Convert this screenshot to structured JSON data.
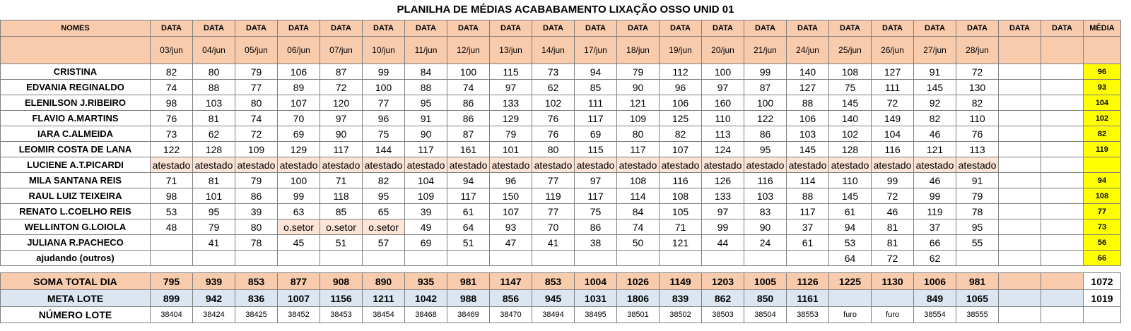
{
  "title": "PLANILHA DE MÉDIAS ACABABAMENTO LIXAÇÃO OSSO UNID 01",
  "header": {
    "names_label": "NOMES",
    "data_label": "DATA",
    "media_label": "MÉDIA",
    "dates": [
      "03/jun",
      "04/jun",
      "05/jun",
      "06/jun",
      "07/jun",
      "10/jun",
      "11/jun",
      "12/jun",
      "13/jun",
      "14/jun",
      "17/jun",
      "18/jun",
      "19/jun",
      "20/jun",
      "21/jun",
      "24/jun",
      "25/jun",
      "26/jun",
      "27/jun",
      "28/jun",
      "",
      ""
    ]
  },
  "rows": [
    {
      "name": "CRISTINA",
      "values": [
        "82",
        "80",
        "79",
        "106",
        "87",
        "99",
        "84",
        "100",
        "115",
        "73",
        "94",
        "79",
        "112",
        "100",
        "99",
        "140",
        "108",
        "127",
        "91",
        "72",
        "",
        ""
      ],
      "avg": "96"
    },
    {
      "name": "EDVANIA REGINALDO",
      "values": [
        "74",
        "88",
        "77",
        "89",
        "72",
        "100",
        "88",
        "74",
        "97",
        "62",
        "85",
        "90",
        "96",
        "97",
        "87",
        "127",
        "75",
        "111",
        "145",
        "130",
        "",
        ""
      ],
      "avg": "93"
    },
    {
      "name": "ELENILSON J.RIBEIRO",
      "values": [
        "98",
        "103",
        "80",
        "107",
        "120",
        "77",
        "95",
        "86",
        "133",
        "102",
        "111",
        "121",
        "106",
        "160",
        "100",
        "88",
        "145",
        "72",
        "92",
        "82",
        "",
        ""
      ],
      "avg": "104"
    },
    {
      "name": "FLAVIO A.MARTINS",
      "values": [
        "76",
        "81",
        "74",
        "70",
        "97",
        "96",
        "91",
        "86",
        "129",
        "76",
        "117",
        "109",
        "125",
        "110",
        "122",
        "106",
        "140",
        "149",
        "82",
        "110",
        "",
        ""
      ],
      "avg": "102"
    },
    {
      "name": "IARA C.ALMEIDA",
      "values": [
        "73",
        "62",
        "72",
        "69",
        "90",
        "75",
        "90",
        "87",
        "79",
        "76",
        "69",
        "80",
        "82",
        "113",
        "86",
        "103",
        "102",
        "104",
        "46",
        "76",
        "",
        ""
      ],
      "avg": "82"
    },
    {
      "name": "LEOMIR COSTA DE LANA",
      "values": [
        "122",
        "128",
        "109",
        "129",
        "117",
        "144",
        "117",
        "161",
        "101",
        "80",
        "115",
        "117",
        "107",
        "124",
        "95",
        "145",
        "128",
        "116",
        "121",
        "113",
        "",
        ""
      ],
      "avg": "119"
    },
    {
      "name": "LUCIENE A.T.PICARDI",
      "values": [
        "atestado",
        "atestado",
        "atestado",
        "atestado",
        "atestado",
        "atestado",
        "atestado",
        "atestado",
        "atestado",
        "atestado",
        "atestado",
        "atestado",
        "atestado",
        "atestado",
        "atestado",
        "atestado",
        "atestado",
        "atestado",
        "atestado",
        "atestado",
        "",
        ""
      ],
      "avg": ""
    },
    {
      "name": "MILA SANTANA REIS",
      "values": [
        "71",
        "81",
        "79",
        "100",
        "71",
        "82",
        "104",
        "94",
        "96",
        "77",
        "97",
        "108",
        "116",
        "126",
        "116",
        "114",
        "110",
        "99",
        "46",
        "91",
        "",
        ""
      ],
      "avg": "94"
    },
    {
      "name": "RAUL LUIZ TEIXEIRA",
      "values": [
        "98",
        "101",
        "86",
        "99",
        "118",
        "95",
        "109",
        "117",
        "150",
        "119",
        "117",
        "114",
        "108",
        "133",
        "103",
        "88",
        "145",
        "72",
        "99",
        "79",
        "",
        ""
      ],
      "avg": "108"
    },
    {
      "name": "RENATO L.COELHO REIS",
      "values": [
        "53",
        "95",
        "39",
        "63",
        "85",
        "65",
        "39",
        "61",
        "107",
        "77",
        "75",
        "84",
        "105",
        "97",
        "83",
        "117",
        "61",
        "46",
        "119",
        "78",
        "",
        ""
      ],
      "avg": "77"
    },
    {
      "name": "WELLINTON G.LOIOLA",
      "values": [
        "48",
        "79",
        "80",
        "o.setor",
        "o.setor",
        "o.setor",
        "49",
        "64",
        "93",
        "70",
        "86",
        "74",
        "71",
        "99",
        "90",
        "37",
        "94",
        "81",
        "37",
        "95",
        "",
        ""
      ],
      "avg": "73"
    },
    {
      "name": "JULIANA R.PACHECO",
      "values": [
        "",
        "41",
        "78",
        "45",
        "51",
        "57",
        "69",
        "51",
        "47",
        "41",
        "38",
        "50",
        "121",
        "44",
        "24",
        "61",
        "53",
        "81",
        "66",
        "55",
        "",
        ""
      ],
      "avg": "56"
    },
    {
      "name": "ajudando (outros)",
      "values": [
        "",
        "",
        "",
        "",
        "",
        "",
        "",
        "",
        "",
        "",
        "",
        "",
        "",
        "",
        "",
        "",
        "64",
        "72",
        "62",
        "",
        "",
        ""
      ],
      "avg": "66"
    }
  ],
  "soma": {
    "label": "SOMA TOTAL DIA",
    "values": [
      "795",
      "939",
      "853",
      "877",
      "908",
      "890",
      "935",
      "981",
      "1147",
      "853",
      "1004",
      "1026",
      "1149",
      "1203",
      "1005",
      "1126",
      "1225",
      "1130",
      "1006",
      "981",
      "",
      ""
    ],
    "total": "1072"
  },
  "meta": {
    "label": "META LOTE",
    "values": [
      "899",
      "942",
      "836",
      "1007",
      "1156",
      "1211",
      "1042",
      "988",
      "856",
      "945",
      "1031",
      "1806",
      "839",
      "862",
      "850",
      "1161",
      "",
      "",
      "849",
      "1065",
      "",
      ""
    ],
    "total": "1019"
  },
  "lote": {
    "label": "NÚMERO LOTE",
    "values": [
      "38404",
      "38424",
      "38425",
      "38452",
      "38453",
      "38454",
      "38468",
      "38469",
      "38470",
      "38494",
      "38495",
      "38501",
      "38502",
      "38503",
      "38504",
      "38553",
      "furo",
      "furo",
      "38554",
      "38555",
      "",
      ""
    ],
    "total": ""
  },
  "colors": {
    "header_bg": "#f8cbad",
    "avg_bg": "#ffff00",
    "meta_bg": "#dce6f1",
    "atestado_bg": "#fce4d6"
  }
}
